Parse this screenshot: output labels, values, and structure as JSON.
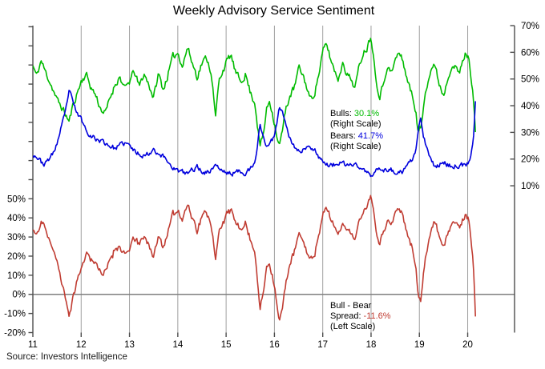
{
  "title": "Weekly Advisory Service Sentiment",
  "source": "Source: Investors Intelligence",
  "annotations": {
    "bulls_label": "Bulls:",
    "bulls_value": "30.1%",
    "right_scale_1": "(Right Scale)",
    "bears_label": "Bears:",
    "bears_value": "41.7%",
    "right_scale_2": "(Right Scale)",
    "spread_line1": "Bull - Bear",
    "spread_label": "Spread:",
    "spread_value": "-11.6%",
    "left_scale": "(Left Scale)"
  },
  "colors": {
    "bulls": "#00bb00",
    "bears": "#0000dd",
    "spread": "#c03c32",
    "grid": "#a0a0a0",
    "axis": "#4d4d4d",
    "zero_line": "#7f7f7f",
    "text": "#000000"
  },
  "chart_data": {
    "type": "line",
    "title": "Weekly Advisory Service Sentiment",
    "grid": "vertical-yearly",
    "x_axis": {
      "tick_labels": [
        "11",
        "12",
        "13",
        "14",
        "15",
        "16",
        "17",
        "18",
        "19",
        "20"
      ],
      "ticks": [
        11,
        12,
        13,
        14,
        15,
        16,
        17,
        18,
        19,
        20
      ],
      "range": [
        11,
        20.97
      ]
    },
    "right_axis": {
      "tick_labels": [
        "70%",
        "60%",
        "50%",
        "40%",
        "30%",
        "20%",
        "10%"
      ],
      "ticks": [
        70,
        60,
        50,
        40,
        30,
        20,
        10
      ],
      "range": [
        -45,
        70
      ],
      "used_by": [
        "Bulls",
        "Bears"
      ]
    },
    "left_axis": {
      "tick_labels": [
        "50%",
        "40%",
        "30%",
        "20%",
        "10%",
        "0%",
        "-10%",
        "-20%"
      ],
      "ticks": [
        50,
        40,
        30,
        20,
        10,
        0,
        -10,
        -20
      ],
      "range": [
        -20,
        140.6
      ],
      "zero_line": true,
      "used_by": [
        "Bull - Bear Spread"
      ]
    },
    "series": [
      {
        "name": "Bulls",
        "scale": "right",
        "color_key": "bulls",
        "last_value": 30.1,
        "points": [
          [
            11.0,
            55
          ],
          [
            11.08,
            51
          ],
          [
            11.17,
            57
          ],
          [
            11.25,
            53
          ],
          [
            11.33,
            50
          ],
          [
            11.42,
            46
          ],
          [
            11.5,
            42
          ],
          [
            11.58,
            40
          ],
          [
            11.67,
            37
          ],
          [
            11.75,
            34
          ],
          [
            11.83,
            40
          ],
          [
            11.92,
            45
          ],
          [
            12.0,
            49
          ],
          [
            12.1,
            52
          ],
          [
            12.2,
            47
          ],
          [
            12.3,
            44
          ],
          [
            12.4,
            39
          ],
          [
            12.5,
            37
          ],
          [
            12.6,
            43
          ],
          [
            12.7,
            48
          ],
          [
            12.8,
            51
          ],
          [
            12.9,
            46
          ],
          [
            13.0,
            49
          ],
          [
            13.1,
            53
          ],
          [
            13.2,
            47
          ],
          [
            13.3,
            52
          ],
          [
            13.4,
            48
          ],
          [
            13.5,
            43
          ],
          [
            13.6,
            52
          ],
          [
            13.7,
            46
          ],
          [
            13.8,
            52
          ],
          [
            13.9,
            58
          ],
          [
            14.0,
            60
          ],
          [
            14.1,
            55
          ],
          [
            14.2,
            62
          ],
          [
            14.3,
            56
          ],
          [
            14.4,
            51
          ],
          [
            14.5,
            56
          ],
          [
            14.6,
            58
          ],
          [
            14.7,
            52
          ],
          [
            14.78,
            35
          ],
          [
            14.85,
            49
          ],
          [
            14.92,
            53
          ],
          [
            15.0,
            56
          ],
          [
            15.1,
            59
          ],
          [
            15.2,
            52
          ],
          [
            15.3,
            49
          ],
          [
            15.4,
            52
          ],
          [
            15.5,
            45
          ],
          [
            15.6,
            41
          ],
          [
            15.7,
            24.6
          ],
          [
            15.78,
            30
          ],
          [
            15.83,
            38
          ],
          [
            15.9,
            42
          ],
          [
            16.0,
            34
          ],
          [
            16.1,
            24.7
          ],
          [
            16.17,
            31
          ],
          [
            16.25,
            40
          ],
          [
            16.33,
            44
          ],
          [
            16.42,
            47
          ],
          [
            16.5,
            54
          ],
          [
            16.58,
            52
          ],
          [
            16.67,
            47
          ],
          [
            16.75,
            42
          ],
          [
            16.83,
            45
          ],
          [
            16.92,
            52
          ],
          [
            17.0,
            60
          ],
          [
            17.08,
            63
          ],
          [
            17.17,
            57
          ],
          [
            17.25,
            53
          ],
          [
            17.33,
            50
          ],
          [
            17.42,
            57
          ],
          [
            17.5,
            52
          ],
          [
            17.58,
            50
          ],
          [
            17.67,
            47
          ],
          [
            17.75,
            54
          ],
          [
            17.83,
            60
          ],
          [
            17.92,
            62
          ],
          [
            18.0,
            66.5
          ],
          [
            18.08,
            54
          ],
          [
            18.17,
            43
          ],
          [
            18.25,
            48
          ],
          [
            18.33,
            55
          ],
          [
            18.42,
            52
          ],
          [
            18.5,
            57
          ],
          [
            18.58,
            60
          ],
          [
            18.67,
            56
          ],
          [
            18.75,
            50
          ],
          [
            18.83,
            45
          ],
          [
            18.92,
            39
          ],
          [
            18.98,
            29.5
          ],
          [
            19.05,
            33
          ],
          [
            19.12,
            45
          ],
          [
            19.2,
            52
          ],
          [
            19.3,
            56
          ],
          [
            19.4,
            49
          ],
          [
            19.5,
            44
          ],
          [
            19.58,
            50
          ],
          [
            19.67,
            56
          ],
          [
            19.75,
            54
          ],
          [
            19.83,
            52
          ],
          [
            19.92,
            58
          ],
          [
            19.96,
            59.5
          ],
          [
            20.0,
            59
          ],
          [
            20.05,
            54
          ],
          [
            20.1,
            47
          ],
          [
            20.13,
            41
          ],
          [
            20.16,
            30.1
          ]
        ]
      },
      {
        "name": "Bears",
        "scale": "right",
        "color_key": "bears",
        "last_value": 41.7,
        "points": [
          [
            11.0,
            22
          ],
          [
            11.08,
            21
          ],
          [
            11.17,
            19
          ],
          [
            11.25,
            18
          ],
          [
            11.33,
            20
          ],
          [
            11.42,
            22
          ],
          [
            11.5,
            26
          ],
          [
            11.58,
            31
          ],
          [
            11.67,
            37
          ],
          [
            11.75,
            46
          ],
          [
            11.83,
            41
          ],
          [
            11.92,
            37
          ],
          [
            12.0,
            35
          ],
          [
            12.1,
            31
          ],
          [
            12.2,
            29
          ],
          [
            12.3,
            27.5
          ],
          [
            12.4,
            27
          ],
          [
            12.5,
            26
          ],
          [
            12.6,
            25
          ],
          [
            12.7,
            24
          ],
          [
            12.8,
            25
          ],
          [
            12.9,
            26
          ],
          [
            13.0,
            25
          ],
          [
            13.1,
            23
          ],
          [
            13.2,
            22
          ],
          [
            13.3,
            21.5
          ],
          [
            13.4,
            22
          ],
          [
            13.5,
            24
          ],
          [
            13.6,
            22
          ],
          [
            13.7,
            21
          ],
          [
            13.8,
            19
          ],
          [
            13.9,
            17
          ],
          [
            14.0,
            15.5
          ],
          [
            14.1,
            15
          ],
          [
            14.2,
            14.5
          ],
          [
            14.3,
            16
          ],
          [
            14.4,
            17
          ],
          [
            14.5,
            15.5
          ],
          [
            14.6,
            15
          ],
          [
            14.7,
            16
          ],
          [
            14.78,
            18.5
          ],
          [
            14.85,
            16.5
          ],
          [
            14.92,
            15.5
          ],
          [
            15.0,
            15
          ],
          [
            15.1,
            14.5
          ],
          [
            15.2,
            15
          ],
          [
            15.3,
            15.5
          ],
          [
            15.4,
            15
          ],
          [
            15.5,
            16
          ],
          [
            15.6,
            18
          ],
          [
            15.7,
            33
          ],
          [
            15.78,
            28
          ],
          [
            15.83,
            25
          ],
          [
            15.9,
            25
          ],
          [
            16.0,
            29
          ],
          [
            16.1,
            39.2
          ],
          [
            16.17,
            38
          ],
          [
            16.25,
            33
          ],
          [
            16.33,
            27
          ],
          [
            16.42,
            24.5
          ],
          [
            16.5,
            23
          ],
          [
            16.58,
            23.5
          ],
          [
            16.67,
            24
          ],
          [
            16.75,
            24.5
          ],
          [
            16.83,
            24
          ],
          [
            16.92,
            21
          ],
          [
            17.0,
            19.5
          ],
          [
            17.08,
            18
          ],
          [
            17.17,
            17.5
          ],
          [
            17.25,
            18
          ],
          [
            17.33,
            18.5
          ],
          [
            17.42,
            18
          ],
          [
            17.5,
            17.5
          ],
          [
            17.58,
            18
          ],
          [
            17.67,
            18
          ],
          [
            17.75,
            17
          ],
          [
            17.83,
            16
          ],
          [
            17.92,
            15
          ],
          [
            18.0,
            13.5
          ],
          [
            18.08,
            14.5
          ],
          [
            18.17,
            17.5
          ],
          [
            18.25,
            16
          ],
          [
            18.33,
            15.5
          ],
          [
            18.42,
            16
          ],
          [
            18.5,
            15
          ],
          [
            18.58,
            14.5
          ],
          [
            18.67,
            15.5
          ],
          [
            18.75,
            17
          ],
          [
            18.83,
            19
          ],
          [
            18.92,
            23
          ],
          [
            18.98,
            30
          ],
          [
            19.02,
            35.5
          ],
          [
            19.08,
            29
          ],
          [
            19.15,
            24
          ],
          [
            19.22,
            20
          ],
          [
            19.3,
            18
          ],
          [
            19.4,
            17.5
          ],
          [
            19.5,
            19
          ],
          [
            19.58,
            18
          ],
          [
            19.67,
            17
          ],
          [
            19.75,
            17.5
          ],
          [
            19.83,
            18
          ],
          [
            19.92,
            17.5
          ],
          [
            20.0,
            18
          ],
          [
            20.05,
            19
          ],
          [
            20.1,
            24
          ],
          [
            20.13,
            31
          ],
          [
            20.16,
            41.7
          ]
        ]
      },
      {
        "name": "Bull - Bear Spread",
        "scale": "left",
        "color_key": "spread",
        "last_value": -11.6,
        "derived": "Bulls minus Bears"
      }
    ]
  }
}
